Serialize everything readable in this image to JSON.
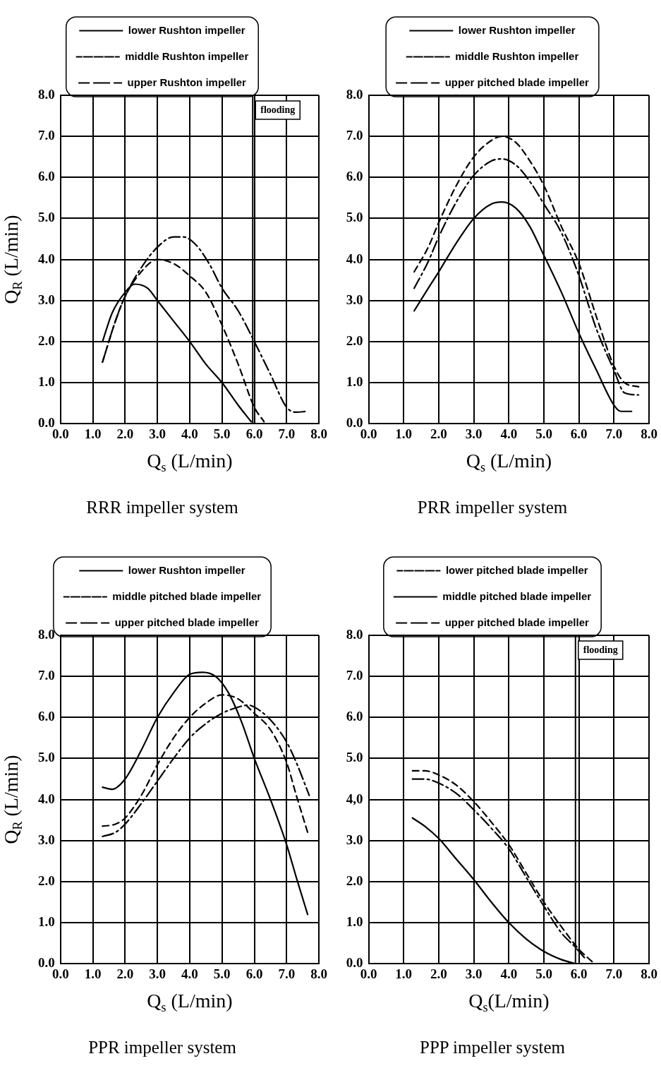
{
  "chart_data": [
    {
      "type": "line",
      "title": "RRR impeller system",
      "xlabel": "Q$_{s}$ (L/min)",
      "ylabel": "Q$_{R}$ (L/min)",
      "xlim": [
        0,
        8
      ],
      "ylim": [
        0,
        8
      ],
      "xticks": [
        {
          "value": 0,
          "label": "0.0"
        },
        {
          "value": 1,
          "label": "1.0"
        },
        {
          "value": 2,
          "label": "2.0"
        },
        {
          "value": 3,
          "label": "3.0"
        },
        {
          "value": 4,
          "label": "4.0"
        },
        {
          "value": 5,
          "label": "5.0"
        },
        {
          "value": 6,
          "label": "6.0"
        },
        {
          "value": 7,
          "label": "7.0"
        },
        {
          "value": 8,
          "label": "8.0"
        }
      ],
      "yticks": [
        {
          "value": 0,
          "label": "0.0"
        },
        {
          "value": 1,
          "label": "1.0"
        },
        {
          "value": 2,
          "label": "2.0"
        },
        {
          "value": 3,
          "label": "3.0"
        },
        {
          "value": 4,
          "label": "4.0"
        },
        {
          "value": 5,
          "label": "5.0"
        },
        {
          "value": 6,
          "label": "6.0"
        },
        {
          "value": 7,
          "label": "7.0"
        },
        {
          "value": 8,
          "label": "8.0"
        }
      ],
      "grid": true,
      "legend": "top",
      "marker": "none",
      "ref_lines": [
        {
          "axis": "x",
          "value": 5.95,
          "label": "flooding"
        }
      ],
      "series": [
        {
          "name": "lower Rushton impeller",
          "color": "#000000",
          "line_style": "solid",
          "x": [
            1.3,
            1.6,
            2.0,
            2.3,
            2.7,
            3.0,
            3.5,
            4.0,
            4.5,
            5.0,
            5.5,
            5.9
          ],
          "values": [
            2.0,
            2.7,
            3.2,
            3.4,
            3.3,
            3.0,
            2.5,
            2.0,
            1.45,
            1.0,
            0.45,
            0.05
          ]
        },
        {
          "name": "middle Rushton impeller",
          "color": "#000000",
          "line_style": "dashed",
          "x": [
            1.3,
            1.7,
            2.0,
            2.5,
            3.0,
            3.5,
            4.0,
            4.5,
            5.0,
            5.5,
            6.0,
            6.3
          ],
          "values": [
            1.5,
            2.5,
            3.1,
            3.7,
            4.0,
            3.9,
            3.6,
            3.2,
            2.4,
            1.45,
            0.4,
            0.05
          ]
        },
        {
          "name": "upper Rushton impeller",
          "color": "#000000",
          "line_style": "dashdot",
          "x": [
            1.3,
            1.7,
            2.0,
            2.5,
            3.0,
            3.5,
            3.8,
            4.2,
            4.6,
            5.0,
            5.5,
            6.0,
            6.5,
            7.0,
            7.3,
            7.6
          ],
          "values": [
            1.5,
            2.5,
            3.1,
            3.8,
            4.3,
            4.55,
            4.55,
            4.35,
            3.9,
            3.3,
            2.75,
            2.0,
            1.2,
            0.4,
            0.28,
            0.3
          ]
        }
      ]
    },
    {
      "type": "line",
      "title": "PRR impeller system",
      "xlabel": "Q$_{s}$ (L/min)",
      "xlim": [
        0,
        8
      ],
      "ylim": [
        0,
        8
      ],
      "xticks": [
        {
          "value": 0,
          "label": "0.0"
        },
        {
          "value": 1,
          "label": "1.0"
        },
        {
          "value": 2,
          "label": "2.0"
        },
        {
          "value": 3,
          "label": "3.0"
        },
        {
          "value": 4,
          "label": "4.0"
        },
        {
          "value": 5,
          "label": "5.0"
        },
        {
          "value": 6,
          "label": "6.0"
        },
        {
          "value": 7,
          "label": "7.0"
        },
        {
          "value": 8,
          "label": "8.0"
        }
      ],
      "yticks": [
        {
          "value": 0,
          "label": "0.0"
        },
        {
          "value": 1,
          "label": "1.0"
        },
        {
          "value": 2,
          "label": "2.0"
        },
        {
          "value": 3,
          "label": "3.0"
        },
        {
          "value": 4,
          "label": "4.0"
        },
        {
          "value": 5,
          "label": "5.0"
        },
        {
          "value": 6,
          "label": "6.0"
        },
        {
          "value": 7,
          "label": "7.0"
        },
        {
          "value": 8,
          "label": "8.0"
        }
      ],
      "grid": true,
      "legend": "top",
      "marker": "none",
      "series": [
        {
          "name": "lower Rushton impeller",
          "color": "#000000",
          "line_style": "solid",
          "x": [
            1.3,
            1.7,
            2.0,
            2.5,
            3.0,
            3.5,
            3.8,
            4.2,
            4.6,
            5.0,
            5.5,
            6.0,
            6.5,
            7.0,
            7.2,
            7.5
          ],
          "values": [
            2.75,
            3.3,
            3.7,
            4.4,
            5.0,
            5.35,
            5.4,
            5.25,
            4.8,
            4.1,
            3.2,
            2.2,
            1.3,
            0.45,
            0.3,
            0.3
          ]
        },
        {
          "name": "middle Rushton impeller",
          "color": "#000000",
          "line_style": "dashed",
          "x": [
            1.3,
            1.7,
            2.0,
            2.5,
            3.0,
            3.5,
            3.8,
            4.2,
            4.6,
            5.0,
            5.5,
            6.0,
            6.5,
            7.0,
            7.3,
            7.7
          ],
          "values": [
            3.7,
            4.3,
            4.9,
            5.8,
            6.5,
            6.9,
            7.0,
            6.85,
            6.4,
            5.8,
            4.8,
            3.9,
            2.6,
            1.4,
            1.0,
            0.9
          ]
        },
        {
          "name": "upper pitched blade impeller",
          "color": "#000000",
          "line_style": "dashdot",
          "x": [
            1.3,
            1.7,
            2.0,
            2.5,
            3.0,
            3.5,
            3.8,
            4.2,
            4.6,
            5.0,
            5.5,
            6.0,
            6.5,
            7.0,
            7.3,
            7.7
          ],
          "values": [
            3.3,
            3.95,
            4.55,
            5.4,
            6.05,
            6.4,
            6.45,
            6.3,
            5.9,
            5.35,
            4.65,
            3.6,
            2.3,
            1.3,
            0.75,
            0.7
          ]
        }
      ]
    },
    {
      "type": "line",
      "title": "PPR impeller system",
      "xlabel": "Q$_{s}$ (L/min)",
      "ylabel": "Q$_{R}$ (L/min)",
      "xlim": [
        0,
        8
      ],
      "ylim": [
        0,
        8
      ],
      "xticks": [
        {
          "value": 0,
          "label": "0.0"
        },
        {
          "value": 1,
          "label": "1.0"
        },
        {
          "value": 2,
          "label": "2.0"
        },
        {
          "value": 3,
          "label": "3.0"
        },
        {
          "value": 4,
          "label": "4.0"
        },
        {
          "value": 5,
          "label": "5.0"
        },
        {
          "value": 6,
          "label": "6.0"
        },
        {
          "value": 7,
          "label": "7.0"
        },
        {
          "value": 8,
          "label": "8.0"
        }
      ],
      "yticks": [
        {
          "value": 0,
          "label": "0.0"
        },
        {
          "value": 1,
          "label": "1.0"
        },
        {
          "value": 2,
          "label": "2.0"
        },
        {
          "value": 3,
          "label": "3.0"
        },
        {
          "value": 4,
          "label": "4.0"
        },
        {
          "value": 5,
          "label": "5.0"
        },
        {
          "value": 6,
          "label": "6.0"
        },
        {
          "value": 7,
          "label": "7.0"
        },
        {
          "value": 8,
          "label": "8.0"
        }
      ],
      "grid": true,
      "legend": "top",
      "marker": "none",
      "series": [
        {
          "name": "lower Rushton impeller",
          "color": "#000000",
          "line_style": "solid",
          "x": [
            1.3,
            1.6,
            2.0,
            2.5,
            3.0,
            3.5,
            4.0,
            4.4,
            4.8,
            5.2,
            5.6,
            6.0,
            6.5,
            7.0,
            7.3,
            7.65
          ],
          "values": [
            4.3,
            4.25,
            4.5,
            5.2,
            6.0,
            6.6,
            7.05,
            7.1,
            7.0,
            6.6,
            5.9,
            5.0,
            4.0,
            2.9,
            2.1,
            1.2
          ]
        },
        {
          "name": "middle pitched blade impeller",
          "color": "#000000",
          "line_style": "dashed",
          "x": [
            1.3,
            1.7,
            2.0,
            2.5,
            3.0,
            3.5,
            4.0,
            4.5,
            5.0,
            5.5,
            6.0,
            6.5,
            7.0,
            7.3,
            7.65
          ],
          "values": [
            3.35,
            3.4,
            3.55,
            4.1,
            4.85,
            5.5,
            6.0,
            6.35,
            6.55,
            6.45,
            6.1,
            5.7,
            4.9,
            4.1,
            3.2
          ]
        },
        {
          "name": "upper pitched blade impeller",
          "color": "#000000",
          "line_style": "dashdot",
          "x": [
            1.3,
            1.7,
            2.0,
            2.5,
            3.0,
            3.5,
            4.0,
            4.5,
            5.0,
            5.5,
            5.8,
            6.2,
            6.6,
            7.0,
            7.3,
            7.7
          ],
          "values": [
            3.1,
            3.2,
            3.4,
            3.9,
            4.45,
            5.0,
            5.5,
            5.85,
            6.1,
            6.25,
            6.3,
            6.15,
            5.85,
            5.4,
            4.9,
            4.1
          ]
        }
      ]
    },
    {
      "type": "line",
      "title": "PPP impeller system",
      "xlabel": "Q$_{s}$(L/min)",
      "xlim": [
        0,
        8
      ],
      "ylim": [
        0,
        8
      ],
      "xticks": [
        {
          "value": 0,
          "label": "0.0"
        },
        {
          "value": 1,
          "label": "1.0"
        },
        {
          "value": 2,
          "label": "2.0"
        },
        {
          "value": 3,
          "label": "3.0"
        },
        {
          "value": 4,
          "label": "4.0"
        },
        {
          "value": 5,
          "label": "5.0"
        },
        {
          "value": 6,
          "label": "6.0"
        },
        {
          "value": 7,
          "label": "7.0"
        },
        {
          "value": 8,
          "label": "8.0"
        }
      ],
      "yticks": [
        {
          "value": 0,
          "label": "0.0"
        },
        {
          "value": 1,
          "label": "1.0"
        },
        {
          "value": 2,
          "label": "2.0"
        },
        {
          "value": 3,
          "label": "3.0"
        },
        {
          "value": 4,
          "label": "4,0"
        },
        {
          "value": 5,
          "label": "5.0"
        },
        {
          "value": 6,
          "label": "6.0"
        },
        {
          "value": 7,
          "label": "7.0"
        },
        {
          "value": 8,
          "label": "8.0"
        }
      ],
      "grid": true,
      "legend": "top",
      "marker": "none",
      "ref_lines": [
        {
          "axis": "x",
          "value": 5.9,
          "label": "flooding"
        }
      ],
      "series": [
        {
          "name": "lower pitched blade impeller",
          "color": "#000000",
          "line_style": "dashed",
          "x": [
            1.25,
            1.6,
            2.0,
            2.5,
            3.0,
            3.5,
            4.0,
            4.5,
            5.0,
            5.5,
            6.0,
            6.4
          ],
          "values": [
            4.7,
            4.7,
            4.6,
            4.35,
            3.95,
            3.45,
            2.9,
            2.2,
            1.5,
            0.9,
            0.35,
            0.03
          ]
        },
        {
          "name": "middle pitched blade impeller",
          "color": "#000000",
          "line_style": "solid",
          "x": [
            1.25,
            1.6,
            2.0,
            2.5,
            3.0,
            3.5,
            4.0,
            4.5,
            5.0,
            5.5,
            5.9
          ],
          "values": [
            3.55,
            3.35,
            3.05,
            2.55,
            2.05,
            1.5,
            1.0,
            0.6,
            0.3,
            0.1,
            0.0
          ]
        },
        {
          "name": "upper pitched blade impeller",
          "color": "#000000",
          "line_style": "dashdot",
          "x": [
            1.25,
            1.6,
            2.0,
            2.5,
            3.0,
            3.5,
            4.0,
            4.5,
            5.0,
            5.5,
            5.9,
            6.2
          ],
          "values": [
            4.5,
            4.5,
            4.4,
            4.15,
            3.75,
            3.3,
            2.8,
            2.1,
            1.4,
            0.75,
            0.4,
            0.1
          ]
        }
      ]
    }
  ]
}
